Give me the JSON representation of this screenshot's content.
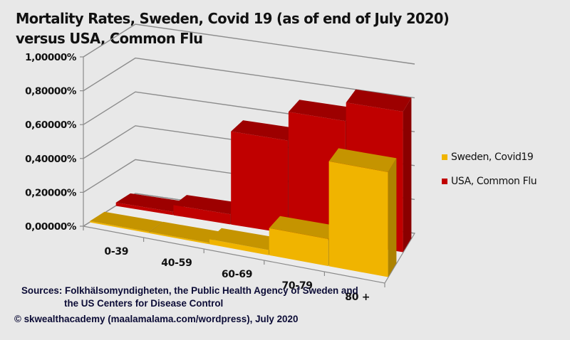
{
  "chart_data": {
    "type": "bar",
    "style": "3d-clustered-depth",
    "title": "Mortality Rates, Sweden, Covid 19 (as of end of July 2020) versus USA, Common Flu",
    "title_lines": [
      "Mortality Rates, Sweden, Covid 19 (as of end of July 2020)",
      "versus USA, Common Flu"
    ],
    "xlabel": "",
    "ylabel": "",
    "categories": [
      "0-39",
      "40-59",
      "60-69",
      "70-79",
      "80 +"
    ],
    "series": [
      {
        "name": "Sweden, Covid19",
        "color": "#f0b400",
        "values": [
          0.001,
          0.005,
          0.03,
          0.16,
          0.62
        ]
      },
      {
        "name": "USA, Common Flu",
        "color": "#c00000",
        "values": [
          0.02,
          0.06,
          0.55,
          0.72,
          0.83
        ]
      }
    ],
    "value_unit": "%",
    "ylim": [
      0,
      1.0
    ],
    "yticks": [
      0,
      0.2,
      0.4,
      0.6,
      0.8,
      1.0
    ],
    "ytick_labels": [
      "0,00000%",
      "0,20000%",
      "0,40000%",
      "0,60000%",
      "0,80000%",
      "1,00000%"
    ],
    "grid": true,
    "legend_position": "right"
  },
  "legend": {
    "items": [
      {
        "label": "Sweden, Covid19",
        "color": "#f0b400"
      },
      {
        "label": "USA, Common Flu",
        "color": "#c00000"
      }
    ]
  },
  "footer": {
    "sources_line1": "Sources: Folkhälsomyndigheten, the Public Health Agency of Sweden and",
    "sources_line2": "the US Centers for Disease Control",
    "copyright": "© skwealthacademy (maalamalama.com/wordpress), July 2020"
  }
}
